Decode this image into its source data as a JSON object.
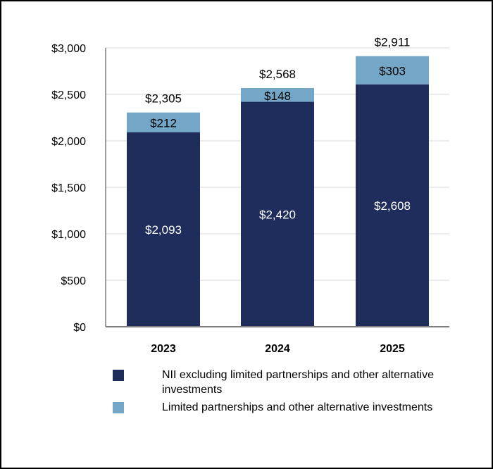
{
  "chart_data": {
    "type": "bar",
    "stacked": true,
    "categories": [
      "2023",
      "2024",
      "2025"
    ],
    "series": [
      {
        "name": "NII excluding limited partnerships and other alternative investments",
        "color": "#1f2d5c",
        "values": [
          2093,
          2420,
          2608
        ],
        "labels": [
          "$2,093",
          "$2,420",
          "$2,608"
        ]
      },
      {
        "name": "Limited partnerships and other alternative investments",
        "color": "#74a6c7",
        "values": [
          212,
          148,
          303
        ],
        "labels": [
          "$212",
          "$148",
          "$303"
        ]
      }
    ],
    "totals": [
      2305,
      2568,
      2911
    ],
    "total_labels": [
      "$2,305",
      "$2,568",
      "$2,911"
    ],
    "ylim": [
      0,
      3000
    ],
    "yticks": [
      0,
      500,
      1000,
      1500,
      2000,
      2500,
      3000
    ],
    "ytick_labels": [
      "$0",
      "$500",
      "$1,000",
      "$1,500",
      "$2,000",
      "$2,500",
      "$3,000"
    ],
    "xlabel": "",
    "ylabel": "",
    "grid": true,
    "legend_position": "bottom"
  }
}
